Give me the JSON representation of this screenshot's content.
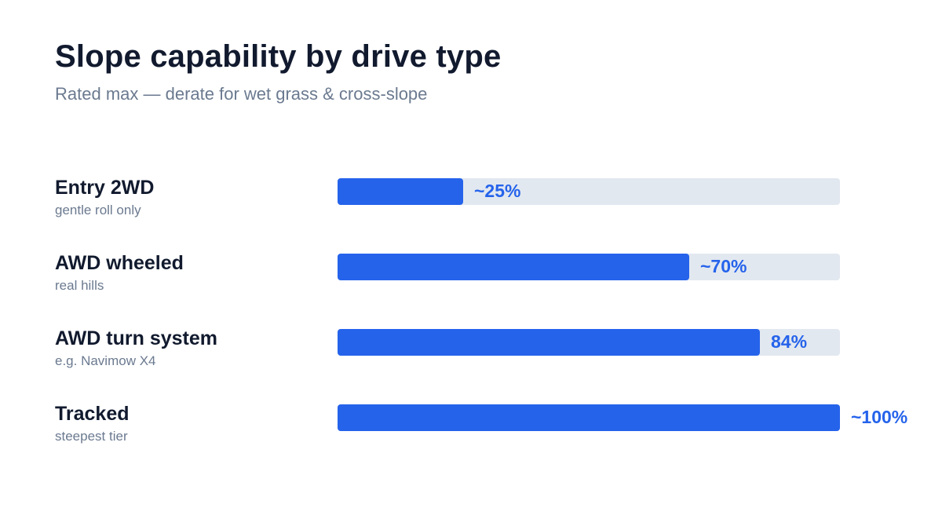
{
  "chart_data": {
    "type": "bar",
    "orientation": "horizontal",
    "title": "Slope capability by drive type",
    "subtitle": "Rated max — derate for wet grass & cross-slope",
    "xlabel": "",
    "ylabel": "",
    "xlim": [
      0,
      100
    ],
    "grid": false,
    "bar_color": "#2563eb",
    "track_color": "#e2e8f0",
    "categories": [
      "Entry 2WD",
      "AWD wheeled",
      "AWD turn system",
      "Tracked"
    ],
    "notes": [
      "gentle roll only",
      "real hills",
      "e.g. Navimow X4",
      "steepest tier"
    ],
    "values": [
      25,
      70,
      84,
      100
    ],
    "value_labels": [
      "~25%",
      "~70%",
      "84%",
      "~100%"
    ]
  }
}
